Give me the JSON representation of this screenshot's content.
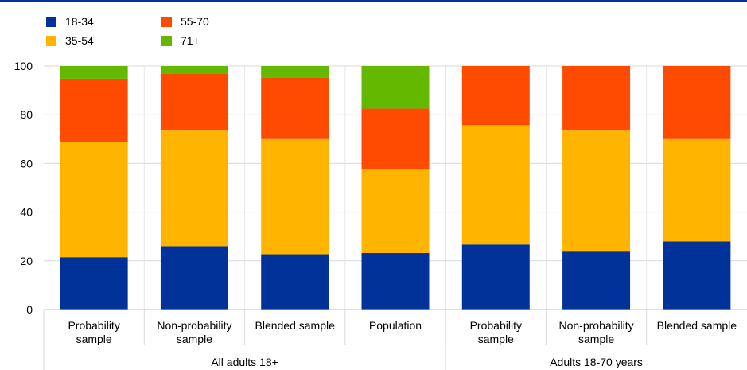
{
  "chart_data": {
    "type": "bar",
    "stacked": true,
    "ylim": [
      0,
      100
    ],
    "yticks": [
      0,
      20,
      40,
      60,
      80,
      100
    ],
    "grid": true,
    "legend_placement": "top-left",
    "categories": [
      "Probability sample",
      "Non-probability sample",
      "Blended sample",
      "Population",
      "Probability sample",
      "Non-probability sample",
      "Blended sample"
    ],
    "category_label_lines": [
      [
        "Probability",
        "sample"
      ],
      [
        "Non-probability",
        "sample"
      ],
      [
        "Blended sample"
      ],
      [
        "Population"
      ],
      [
        "Probability",
        "sample"
      ],
      [
        "Non-probability",
        "sample"
      ],
      [
        "Blended sample"
      ]
    ],
    "groups": [
      {
        "label": "All adults 18+",
        "count": 4
      },
      {
        "label": "Adults 18-70 years",
        "count": 3
      }
    ],
    "series": [
      {
        "name": "18-34",
        "color": "#003299",
        "values": [
          21.5,
          26,
          22.7,
          23.2,
          26.7,
          23.8,
          28
        ]
      },
      {
        "name": "35-54",
        "color": "#FFB400",
        "values": [
          47.3,
          47.5,
          47.3,
          34.5,
          49,
          49.7,
          42
        ]
      },
      {
        "name": "55-70",
        "color": "#FF4B00",
        "values": [
          26,
          23.5,
          25.3,
          24.8,
          24.3,
          26.5,
          30
        ]
      },
      {
        "name": "71+",
        "color": "#65B800",
        "values": [
          5.2,
          3,
          4.7,
          17.5,
          0,
          0,
          0
        ]
      }
    ]
  }
}
